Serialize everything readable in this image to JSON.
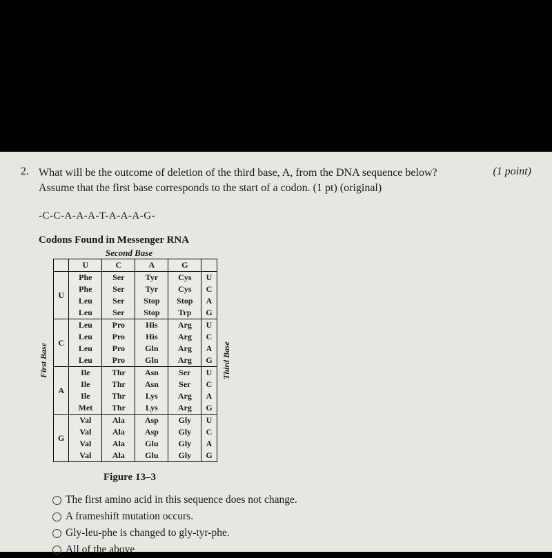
{
  "question": {
    "number": "2.",
    "text_l1": "What will be the outcome of deletion of the third base, A, from the DNA sequence below?",
    "text_l2": "Assume that the first base corresponds to the start of a codon. (1 pt) (original)",
    "points": "(1 point)"
  },
  "sequence": "-C-C-A-A-A-T-A-A-A-G-",
  "table": {
    "title": "Codons Found in Messenger RNA",
    "second_base": "Second Base",
    "first_base": "First Base",
    "third_base": "Third Base",
    "col_headers": [
      "U",
      "C",
      "A",
      "G"
    ],
    "row_headers": [
      "U",
      "C",
      "A",
      "G"
    ],
    "third_col": [
      "U",
      "C",
      "A",
      "G",
      "U",
      "C",
      "A",
      "G",
      "U",
      "C",
      "A",
      "G",
      "U",
      "C",
      "A",
      "G"
    ],
    "cells": [
      [
        "Phe",
        "Ser",
        "Tyr",
        "Cys"
      ],
      [
        "Phe",
        "Ser",
        "Tyr",
        "Cys"
      ],
      [
        "Leu",
        "Ser",
        "Stop",
        "Stop"
      ],
      [
        "Leu",
        "Ser",
        "Stop",
        "Trp"
      ],
      [
        "Leu",
        "Pro",
        "His",
        "Arg"
      ],
      [
        "Leu",
        "Pro",
        "His",
        "Arg"
      ],
      [
        "Leu",
        "Pro",
        "Gln",
        "Arg"
      ],
      [
        "Leu",
        "Pro",
        "Gln",
        "Arg"
      ],
      [
        "Ile",
        "Thr",
        "Asn",
        "Ser"
      ],
      [
        "Ile",
        "Thr",
        "Asn",
        "Ser"
      ],
      [
        "Ile",
        "Thr",
        "Lys",
        "Arg"
      ],
      [
        "Met",
        "Thr",
        "Lys",
        "Arg"
      ],
      [
        "Val",
        "Ala",
        "Asp",
        "Gly"
      ],
      [
        "Val",
        "Ala",
        "Asp",
        "Gly"
      ],
      [
        "Val",
        "Ala",
        "Glu",
        "Gly"
      ],
      [
        "Val",
        "Ala",
        "Glu",
        "Gly"
      ]
    ],
    "border_color": "#000000",
    "cell_bg": "#eceae4",
    "fontsize": 12
  },
  "figure_caption": "Figure 13–3",
  "choices": {
    "a": "The first amino acid in this sequence does not change.",
    "b": "A frameshift mutation occurs.",
    "c": "Gly-leu-phe is changed to gly-tyr-phe.",
    "d": "All of the above"
  },
  "colors": {
    "page_bg": "#e8e6e0",
    "outer_bg": "#000000",
    "text": "#1a1a1a"
  }
}
